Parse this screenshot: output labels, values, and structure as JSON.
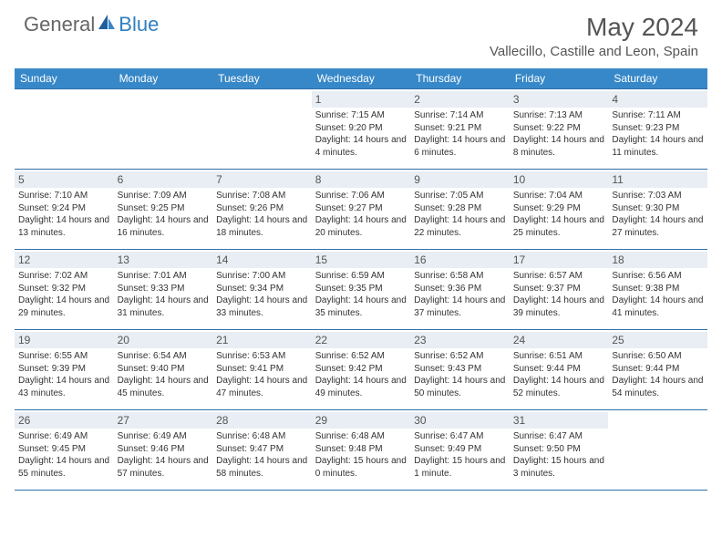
{
  "logo": {
    "general": "General",
    "blue": "Blue"
  },
  "title": {
    "month": "May 2024",
    "location": "Vallecillo, Castille and Leon, Spain"
  },
  "weekdays": [
    "Sunday",
    "Monday",
    "Tuesday",
    "Wednesday",
    "Thursday",
    "Friday",
    "Saturday"
  ],
  "colors": {
    "header_bg": "#3788c8",
    "border": "#2f6fa8",
    "daynum_bg": "#e8eef3"
  },
  "days": [
    {
      "n": "",
      "sr": "",
      "ss": "",
      "dl": ""
    },
    {
      "n": "",
      "sr": "",
      "ss": "",
      "dl": ""
    },
    {
      "n": "",
      "sr": "",
      "ss": "",
      "dl": ""
    },
    {
      "n": "1",
      "sr": "Sunrise: 7:15 AM",
      "ss": "Sunset: 9:20 PM",
      "dl": "Daylight: 14 hours and 4 minutes."
    },
    {
      "n": "2",
      "sr": "Sunrise: 7:14 AM",
      "ss": "Sunset: 9:21 PM",
      "dl": "Daylight: 14 hours and 6 minutes."
    },
    {
      "n": "3",
      "sr": "Sunrise: 7:13 AM",
      "ss": "Sunset: 9:22 PM",
      "dl": "Daylight: 14 hours and 8 minutes."
    },
    {
      "n": "4",
      "sr": "Sunrise: 7:11 AM",
      "ss": "Sunset: 9:23 PM",
      "dl": "Daylight: 14 hours and 11 minutes."
    },
    {
      "n": "5",
      "sr": "Sunrise: 7:10 AM",
      "ss": "Sunset: 9:24 PM",
      "dl": "Daylight: 14 hours and 13 minutes."
    },
    {
      "n": "6",
      "sr": "Sunrise: 7:09 AM",
      "ss": "Sunset: 9:25 PM",
      "dl": "Daylight: 14 hours and 16 minutes."
    },
    {
      "n": "7",
      "sr": "Sunrise: 7:08 AM",
      "ss": "Sunset: 9:26 PM",
      "dl": "Daylight: 14 hours and 18 minutes."
    },
    {
      "n": "8",
      "sr": "Sunrise: 7:06 AM",
      "ss": "Sunset: 9:27 PM",
      "dl": "Daylight: 14 hours and 20 minutes."
    },
    {
      "n": "9",
      "sr": "Sunrise: 7:05 AM",
      "ss": "Sunset: 9:28 PM",
      "dl": "Daylight: 14 hours and 22 minutes."
    },
    {
      "n": "10",
      "sr": "Sunrise: 7:04 AM",
      "ss": "Sunset: 9:29 PM",
      "dl": "Daylight: 14 hours and 25 minutes."
    },
    {
      "n": "11",
      "sr": "Sunrise: 7:03 AM",
      "ss": "Sunset: 9:30 PM",
      "dl": "Daylight: 14 hours and 27 minutes."
    },
    {
      "n": "12",
      "sr": "Sunrise: 7:02 AM",
      "ss": "Sunset: 9:32 PM",
      "dl": "Daylight: 14 hours and 29 minutes."
    },
    {
      "n": "13",
      "sr": "Sunrise: 7:01 AM",
      "ss": "Sunset: 9:33 PM",
      "dl": "Daylight: 14 hours and 31 minutes."
    },
    {
      "n": "14",
      "sr": "Sunrise: 7:00 AM",
      "ss": "Sunset: 9:34 PM",
      "dl": "Daylight: 14 hours and 33 minutes."
    },
    {
      "n": "15",
      "sr": "Sunrise: 6:59 AM",
      "ss": "Sunset: 9:35 PM",
      "dl": "Daylight: 14 hours and 35 minutes."
    },
    {
      "n": "16",
      "sr": "Sunrise: 6:58 AM",
      "ss": "Sunset: 9:36 PM",
      "dl": "Daylight: 14 hours and 37 minutes."
    },
    {
      "n": "17",
      "sr": "Sunrise: 6:57 AM",
      "ss": "Sunset: 9:37 PM",
      "dl": "Daylight: 14 hours and 39 minutes."
    },
    {
      "n": "18",
      "sr": "Sunrise: 6:56 AM",
      "ss": "Sunset: 9:38 PM",
      "dl": "Daylight: 14 hours and 41 minutes."
    },
    {
      "n": "19",
      "sr": "Sunrise: 6:55 AM",
      "ss": "Sunset: 9:39 PM",
      "dl": "Daylight: 14 hours and 43 minutes."
    },
    {
      "n": "20",
      "sr": "Sunrise: 6:54 AM",
      "ss": "Sunset: 9:40 PM",
      "dl": "Daylight: 14 hours and 45 minutes."
    },
    {
      "n": "21",
      "sr": "Sunrise: 6:53 AM",
      "ss": "Sunset: 9:41 PM",
      "dl": "Daylight: 14 hours and 47 minutes."
    },
    {
      "n": "22",
      "sr": "Sunrise: 6:52 AM",
      "ss": "Sunset: 9:42 PM",
      "dl": "Daylight: 14 hours and 49 minutes."
    },
    {
      "n": "23",
      "sr": "Sunrise: 6:52 AM",
      "ss": "Sunset: 9:43 PM",
      "dl": "Daylight: 14 hours and 50 minutes."
    },
    {
      "n": "24",
      "sr": "Sunrise: 6:51 AM",
      "ss": "Sunset: 9:44 PM",
      "dl": "Daylight: 14 hours and 52 minutes."
    },
    {
      "n": "25",
      "sr": "Sunrise: 6:50 AM",
      "ss": "Sunset: 9:44 PM",
      "dl": "Daylight: 14 hours and 54 minutes."
    },
    {
      "n": "26",
      "sr": "Sunrise: 6:49 AM",
      "ss": "Sunset: 9:45 PM",
      "dl": "Daylight: 14 hours and 55 minutes."
    },
    {
      "n": "27",
      "sr": "Sunrise: 6:49 AM",
      "ss": "Sunset: 9:46 PM",
      "dl": "Daylight: 14 hours and 57 minutes."
    },
    {
      "n": "28",
      "sr": "Sunrise: 6:48 AM",
      "ss": "Sunset: 9:47 PM",
      "dl": "Daylight: 14 hours and 58 minutes."
    },
    {
      "n": "29",
      "sr": "Sunrise: 6:48 AM",
      "ss": "Sunset: 9:48 PM",
      "dl": "Daylight: 15 hours and 0 minutes."
    },
    {
      "n": "30",
      "sr": "Sunrise: 6:47 AM",
      "ss": "Sunset: 9:49 PM",
      "dl": "Daylight: 15 hours and 1 minute."
    },
    {
      "n": "31",
      "sr": "Sunrise: 6:47 AM",
      "ss": "Sunset: 9:50 PM",
      "dl": "Daylight: 15 hours and 3 minutes."
    },
    {
      "n": "",
      "sr": "",
      "ss": "",
      "dl": ""
    }
  ]
}
